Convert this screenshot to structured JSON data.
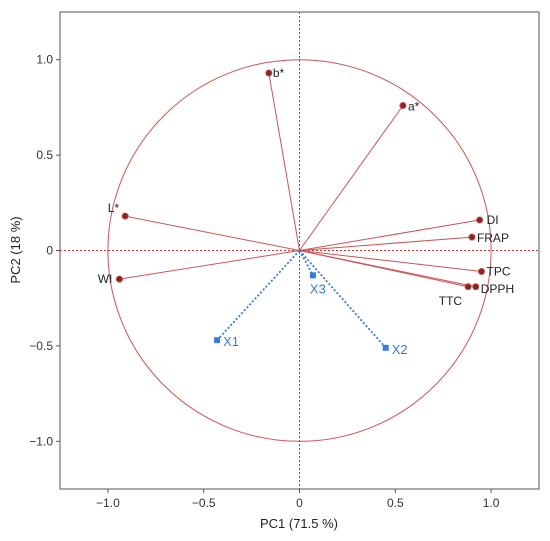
{
  "chart_data": {
    "type": "scatter",
    "title": "",
    "xlabel": "PC1  (71.5 %)",
    "ylabel": "PC2  (18 %)",
    "xlim": [
      -1.25,
      1.25
    ],
    "ylim": [
      -1.25,
      1.25
    ],
    "xticks": [
      -1.0,
      -0.5,
      0,
      0.5,
      1.0
    ],
    "xtick_labels": [
      "−1.0",
      "−0.5",
      "0",
      "0.5",
      "1.0"
    ],
    "yticks": [
      -1.0,
      -0.5,
      0,
      0.5,
      1.0
    ],
    "ytick_labels": [
      "−1.0",
      "−0.5",
      "0",
      "0.5",
      "1.0"
    ],
    "correlation_circle_radius": 1.0,
    "grid": false,
    "series": [
      {
        "kind": "variables",
        "color": "#cc4444",
        "points": [
          {
            "label": "b*",
            "x": -0.16,
            "y": 0.93
          },
          {
            "label": "a*",
            "x": 0.54,
            "y": 0.76
          },
          {
            "label": "L*",
            "x": -0.91,
            "y": 0.18
          },
          {
            "label": "WI",
            "x": -0.94,
            "y": -0.15
          },
          {
            "label": "DI",
            "x": 0.94,
            "y": 0.16
          },
          {
            "label": "FRAP",
            "x": 0.9,
            "y": 0.07
          },
          {
            "label": "TPC",
            "x": 0.95,
            "y": -0.11
          },
          {
            "label": "DPPH",
            "x": 0.92,
            "y": -0.19
          },
          {
            "label": "TTC",
            "x": 0.88,
            "y": -0.19
          }
        ]
      },
      {
        "kind": "observations",
        "color": "#3a7bd5",
        "points": [
          {
            "label": "X1",
            "x": -0.43,
            "y": -0.47
          },
          {
            "label": "X2",
            "x": 0.45,
            "y": -0.51
          },
          {
            "label": "X3",
            "x": 0.07,
            "y": -0.13
          }
        ]
      }
    ]
  }
}
